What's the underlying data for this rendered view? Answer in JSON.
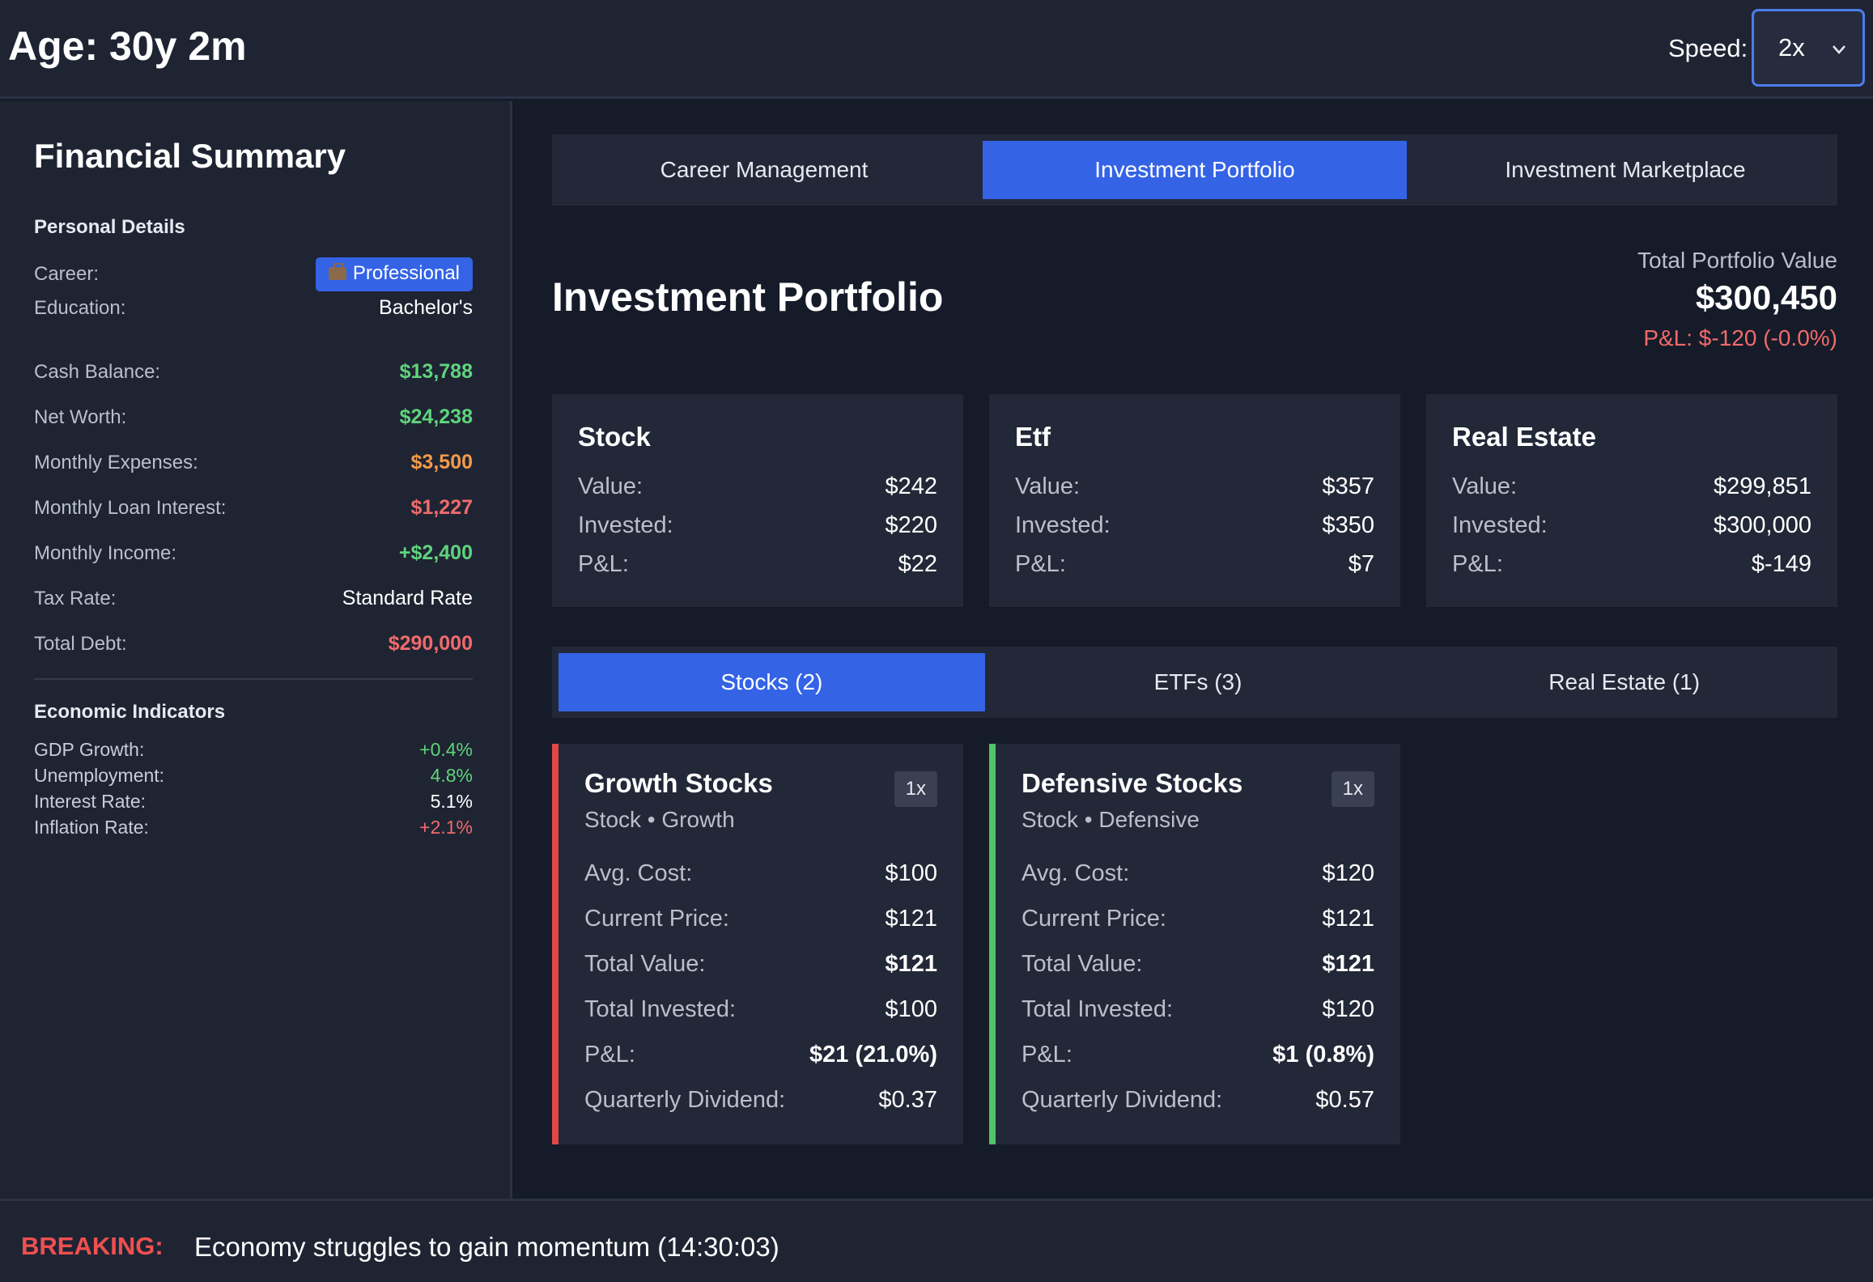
{
  "header": {
    "age": "Age: 30y 2m",
    "speed_label": "Speed:",
    "speed_value": "2x"
  },
  "sidebar": {
    "title": "Financial Summary",
    "personal_title": "Personal Details",
    "career_label": "Career:",
    "career_value": "Professional",
    "education_label": "Education:",
    "education_value": "Bachelor's",
    "finance": [
      {
        "label": "Cash Balance:",
        "value": "$13,788"
      },
      {
        "label": "Net Worth:",
        "value": "$24,238"
      },
      {
        "label": "Monthly Expenses:",
        "value": "$3,500"
      },
      {
        "label": "Monthly Loan Interest:",
        "value": "$1,227"
      },
      {
        "label": "Monthly Income:",
        "value": "+$2,400"
      },
      {
        "label": "Tax Rate:",
        "value": "Standard Rate"
      },
      {
        "label": "Total Debt:",
        "value": "$290,000"
      }
    ],
    "econ_title": "Economic Indicators",
    "econ": [
      {
        "label": "GDP Growth:",
        "value": "+0.4%"
      },
      {
        "label": "Unemployment:",
        "value": "4.8%"
      },
      {
        "label": "Interest Rate:",
        "value": "5.1%"
      },
      {
        "label": "Inflation Rate:",
        "value": "+2.1%"
      }
    ]
  },
  "main_tabs": [
    "Career Management",
    "Investment Portfolio",
    "Investment Marketplace"
  ],
  "portfolio": {
    "title": "Investment Portfolio",
    "total_label": "Total Portfolio Value",
    "total_value": "$300,450",
    "total_pl": "P&L: $-120 (-0.0%)"
  },
  "summary_cards": [
    {
      "title": "Stock",
      "value_label": "Value:",
      "value": "$242",
      "invested_label": "Invested:",
      "invested": "$220",
      "pl_label": "P&L:",
      "pl": "$22"
    },
    {
      "title": "Etf",
      "value_label": "Value:",
      "value": "$357",
      "invested_label": "Invested:",
      "invested": "$350",
      "pl_label": "P&L:",
      "pl": "$7"
    },
    {
      "title": "Real Estate",
      "value_label": "Value:",
      "value": "$299,851",
      "invested_label": "Invested:",
      "invested": "$300,000",
      "pl_label": "P&L:",
      "pl": "$-149"
    }
  ],
  "sub_tabs": [
    "Stocks (2)",
    "ETFs (3)",
    "Real Estate (1)"
  ],
  "holdings": [
    {
      "name": "Growth Stocks",
      "sub": "Stock • Growth",
      "mult": "1x",
      "rows": [
        {
          "k": "Avg. Cost:",
          "v": "$100"
        },
        {
          "k": "Current Price:",
          "v": "$121"
        },
        {
          "k": "Total Value:",
          "v": "$121"
        },
        {
          "k": "Total Invested:",
          "v": "$100"
        },
        {
          "k": "P&L:",
          "v": "$21 (21.0%)"
        },
        {
          "k": "Quarterly Dividend:",
          "v": "$0.37"
        }
      ]
    },
    {
      "name": "Defensive Stocks",
      "sub": "Stock • Defensive",
      "mult": "1x",
      "rows": [
        {
          "k": "Avg. Cost:",
          "v": "$120"
        },
        {
          "k": "Current Price:",
          "v": "$121"
        },
        {
          "k": "Total Value:",
          "v": "$121"
        },
        {
          "k": "Total Invested:",
          "v": "$120"
        },
        {
          "k": "P&L:",
          "v": "$1 (0.8%)"
        },
        {
          "k": "Quarterly Dividend:",
          "v": "$0.57"
        }
      ]
    }
  ],
  "news": {
    "tag": "BREAKING:",
    "message": "Economy struggles to gain momentum (14:30:03)"
  },
  "colors": {
    "accent": "#3463e6",
    "positive": "#5fd47c",
    "negative": "#ef6b6b",
    "warning": "#f39a4a",
    "dividend": "#6aa3ff"
  }
}
